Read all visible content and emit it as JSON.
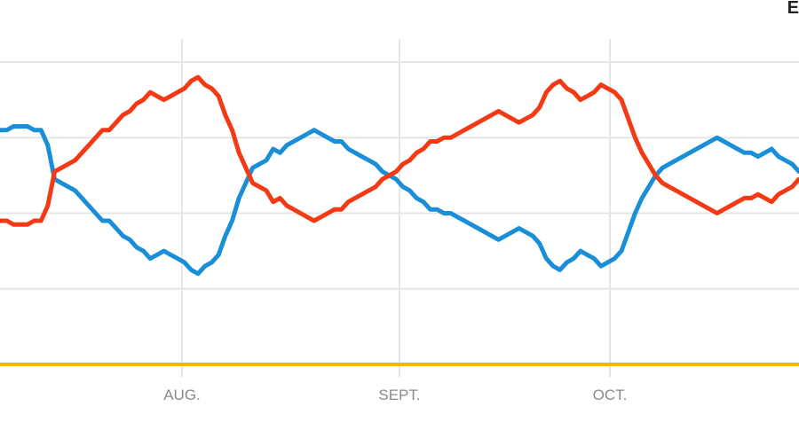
{
  "corner_text": "E",
  "chart_data": {
    "type": "line",
    "title": "",
    "xlabel": "",
    "ylabel": "",
    "x_ticks": [
      "AUG.",
      "SEPT.",
      "OCT."
    ],
    "grid": true,
    "legend": "none",
    "colors": {
      "blue": "#1a8fd8",
      "red": "#f43a14",
      "yellow": "#f7b500",
      "grid": "#e6e6e6",
      "tick": "#8a8a8a"
    },
    "series": [
      {
        "color": "blue",
        "values": [
          62,
          62,
          63,
          63,
          63,
          62,
          62,
          58,
          49,
          48,
          47,
          46,
          44,
          42,
          40,
          38,
          38,
          36,
          34,
          33,
          31,
          30,
          28,
          29,
          30,
          29,
          28,
          27,
          25,
          24,
          26,
          27,
          29,
          34,
          38,
          44,
          48,
          52,
          53,
          54,
          57,
          56,
          58,
          59,
          60,
          61,
          62,
          61,
          60,
          59,
          59,
          57,
          56,
          55,
          54,
          53,
          51,
          50,
          49,
          47,
          46,
          44,
          43,
          41,
          41,
          40,
          40,
          39,
          38,
          37,
          36,
          35,
          34,
          33,
          34,
          35,
          36,
          35,
          34,
          32,
          28,
          26,
          25,
          27,
          28,
          30,
          29,
          28,
          26,
          27,
          28,
          30,
          35,
          40,
          44,
          47,
          50,
          52,
          53,
          54,
          55,
          56,
          57,
          58,
          59,
          60,
          59,
          58,
          57,
          56,
          56,
          55,
          56,
          57,
          55,
          54,
          53,
          51
        ]
      },
      {
        "color": "red",
        "values": [
          38,
          38,
          37,
          37,
          37,
          38,
          38,
          42,
          51,
          52,
          53,
          54,
          56,
          58,
          60,
          62,
          62,
          64,
          66,
          67,
          69,
          70,
          72,
          71,
          70,
          71,
          72,
          73,
          75,
          76,
          74,
          73,
          71,
          66,
          62,
          56,
          52,
          48,
          47,
          46,
          43,
          44,
          42,
          41,
          40,
          39,
          38,
          39,
          40,
          41,
          41,
          43,
          44,
          45,
          46,
          47,
          49,
          50,
          51,
          53,
          54,
          56,
          57,
          59,
          59,
          60,
          60,
          61,
          62,
          63,
          64,
          65,
          66,
          67,
          66,
          65,
          64,
          65,
          66,
          68,
          72,
          74,
          75,
          73,
          72,
          70,
          71,
          72,
          74,
          73,
          72,
          70,
          65,
          60,
          56,
          53,
          50,
          48,
          47,
          46,
          45,
          44,
          43,
          42,
          41,
          40,
          41,
          42,
          43,
          44,
          44,
          45,
          44,
          43,
          45,
          46,
          47,
          49
        ]
      },
      {
        "color": "yellow",
        "values": [
          0,
          0,
          0,
          0,
          0,
          0,
          0,
          0,
          0,
          0,
          0,
          0,
          0,
          0,
          0,
          0,
          0,
          0,
          0,
          0,
          0,
          0,
          0,
          0,
          0,
          0,
          0,
          0,
          0,
          0,
          0,
          0,
          0,
          0,
          0,
          0,
          0,
          0,
          0,
          0,
          0,
          0,
          0,
          0,
          0,
          0,
          0,
          0,
          0,
          0,
          0,
          0,
          0,
          0,
          0,
          0,
          0,
          0,
          0,
          0,
          0,
          0,
          0,
          0,
          0,
          0,
          0,
          0,
          0,
          0,
          0,
          0,
          0,
          0,
          0,
          0,
          0,
          0,
          0,
          0,
          0,
          0,
          0,
          0,
          0,
          0,
          0,
          0,
          0,
          0,
          0,
          0,
          0,
          0,
          0,
          0,
          0,
          0,
          0,
          0,
          0,
          0,
          0,
          0,
          0,
          0,
          0,
          0,
          0,
          0,
          0,
          0,
          0,
          0,
          0,
          0,
          0,
          0
        ]
      }
    ],
    "ylim": [
      0,
      80
    ]
  }
}
